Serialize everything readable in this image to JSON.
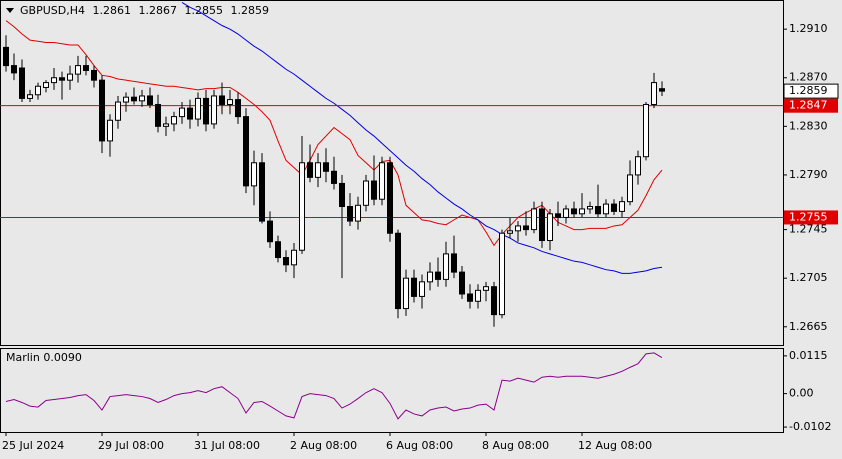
{
  "chart_data": [
    {
      "type": "candlestick",
      "symbol": "GBPUSD,H4",
      "categories": [
        "25 Jul 2024",
        null,
        null,
        null,
        null,
        null,
        null,
        null,
        null,
        null,
        null,
        null,
        "29 Jul 08:00",
        null,
        null,
        null,
        null,
        null,
        null,
        null,
        null,
        null,
        null,
        null,
        "31 Jul 08:00",
        null,
        null,
        null,
        null,
        null,
        null,
        null,
        null,
        null,
        null,
        null,
        "2 Aug 08:00",
        null,
        null,
        null,
        null,
        null,
        null,
        null,
        null,
        null,
        null,
        null,
        "6 Aug 08:00",
        null,
        null,
        null,
        null,
        null,
        null,
        null,
        null,
        null,
        null,
        null,
        "8 Aug 08:00",
        null,
        null,
        null,
        null,
        null,
        null,
        null,
        null,
        null,
        null,
        null,
        "12 Aug 08:00",
        null,
        null,
        null,
        null,
        null,
        null,
        null,
        null,
        null,
        null
      ],
      "open": [
        1.2895,
        1.288,
        1.2878,
        1.2853,
        1.2856,
        1.2862,
        1.2866,
        1.287,
        1.2868,
        1.2873,
        1.288,
        1.2876,
        1.2868,
        1.2818,
        1.2835,
        1.285,
        1.2854,
        1.2851,
        1.2855,
        1.2848,
        1.283,
        1.2832,
        1.2838,
        1.2845,
        1.2836,
        1.2853,
        1.2832,
        1.2855,
        1.2848,
        1.2852,
        1.2838,
        1.2781,
        1.28,
        1.2752,
        1.2735,
        1.2722,
        1.2716,
        1.2728,
        1.28,
        1.2788,
        1.28,
        1.2793,
        1.2783,
        1.2764,
        1.2752,
        1.2765,
        1.2785,
        1.277,
        1.28,
        1.2742,
        1.268,
        1.2705,
        1.269,
        1.2702,
        1.271,
        1.2704,
        1.2725,
        1.271,
        1.2692,
        1.2686,
        1.2695,
        1.2698,
        1.2675,
        1.2742,
        1.2744,
        1.2748,
        1.2745,
        1.2762,
        1.2736,
        1.2758,
        1.2755,
        1.2762,
        1.2758,
        1.2762,
        1.2764,
        1.2758,
        1.2766,
        1.276,
        1.2768,
        1.279,
        1.2805,
        1.2848,
        1.2861
      ],
      "high": [
        1.2905,
        1.289,
        1.2885,
        1.286,
        1.2866,
        1.2868,
        1.2878,
        1.2875,
        1.288,
        1.2888,
        1.2888,
        1.288,
        1.2872,
        1.284,
        1.2855,
        1.2858,
        1.2862,
        1.286,
        1.2862,
        1.2856,
        1.2838,
        1.2842,
        1.285,
        1.2852,
        1.2858,
        1.286,
        1.286,
        1.2866,
        1.286,
        1.2858,
        1.2845,
        1.281,
        1.2808,
        1.276,
        1.274,
        1.2728,
        1.2734,
        1.2822,
        1.2815,
        1.2808,
        1.2812,
        1.2805,
        1.279,
        1.2775,
        1.2772,
        1.279,
        1.2806,
        1.2805,
        1.2805,
        1.2745,
        1.2712,
        1.2712,
        1.2708,
        1.2718,
        1.2722,
        1.2735,
        1.274,
        1.2715,
        1.27,
        1.27,
        1.2702,
        1.2702,
        1.2745,
        1.2755,
        1.2752,
        1.276,
        1.2768,
        1.2768,
        1.2762,
        1.2768,
        1.2765,
        1.2768,
        1.2775,
        1.2768,
        1.2782,
        1.277,
        1.277,
        1.2772,
        1.2802,
        1.281,
        1.285,
        1.2874,
        1.2867
      ],
      "low": [
        1.2875,
        1.2868,
        1.285,
        1.285,
        1.2852,
        1.2858,
        1.286,
        1.2852,
        1.286,
        1.2866,
        1.2872,
        1.2862,
        1.2808,
        1.2805,
        1.2828,
        1.2842,
        1.2848,
        1.2846,
        1.2845,
        1.2825,
        1.2822,
        1.2826,
        1.2832,
        1.2828,
        1.283,
        1.2826,
        1.2828,
        1.284,
        1.284,
        1.2832,
        1.2775,
        1.2765,
        1.275,
        1.273,
        1.2718,
        1.271,
        1.2705,
        1.2725,
        1.2784,
        1.278,
        1.2784,
        1.2778,
        1.2705,
        1.2748,
        1.2745,
        1.276,
        1.2765,
        1.2765,
        1.2735,
        1.2672,
        1.2674,
        1.2685,
        1.268,
        1.2695,
        1.2698,
        1.2698,
        1.2705,
        1.2688,
        1.268,
        1.268,
        1.2686,
        1.2665,
        1.2672,
        1.2738,
        1.2735,
        1.274,
        1.2742,
        1.273,
        1.2728,
        1.2748,
        1.275,
        1.2755,
        1.2755,
        1.2758,
        1.2755,
        1.2755,
        1.2757,
        1.2755,
        1.2765,
        1.2782,
        1.2802,
        1.2845,
        1.2855
      ],
      "close": [
        1.288,
        1.2874,
        1.2853,
        1.2856,
        1.2863,
        1.2866,
        1.287,
        1.2868,
        1.2873,
        1.288,
        1.2876,
        1.2868,
        1.2818,
        1.2835,
        1.285,
        1.2854,
        1.2851,
        1.2855,
        1.2848,
        1.283,
        1.2832,
        1.2838,
        1.2845,
        1.2836,
        1.2853,
        1.2832,
        1.2855,
        1.2848,
        1.2852,
        1.2838,
        1.2781,
        1.28,
        1.2752,
        1.2735,
        1.2722,
        1.2716,
        1.2728,
        1.28,
        1.2788,
        1.28,
        1.2793,
        1.2783,
        1.2764,
        1.2752,
        1.2765,
        1.2785,
        1.277,
        1.28,
        1.2742,
        1.268,
        1.2705,
        1.269,
        1.2702,
        1.271,
        1.2704,
        1.2725,
        1.271,
        1.2692,
        1.2686,
        1.2695,
        1.2698,
        1.2675,
        1.2742,
        1.2744,
        1.2748,
        1.2745,
        1.2762,
        1.2736,
        1.2758,
        1.2755,
        1.2762,
        1.2758,
        1.2762,
        1.2764,
        1.2758,
        1.2766,
        1.276,
        1.2768,
        1.279,
        1.2805,
        1.2848,
        1.2866,
        1.2859
      ],
      "overlays": [
        {
          "color": "#e00000",
          "values": [
            1.2917,
            1.2912,
            1.2906,
            1.2901,
            1.29,
            1.2899,
            1.2899,
            1.2898,
            1.2897,
            1.2897,
            1.2889,
            1.288,
            1.2872,
            1.2871,
            1.2869,
            1.2868,
            1.2867,
            1.2866,
            1.2865,
            1.2864,
            1.2863,
            1.2863,
            1.2862,
            1.2861,
            1.286,
            1.2861,
            1.2861,
            1.2862,
            1.2862,
            1.2858,
            1.2853,
            1.2848,
            1.2842,
            1.2835,
            1.2818,
            1.2802,
            1.2796,
            1.279,
            1.2802,
            1.2815,
            1.2822,
            1.2829,
            1.2824,
            1.2819,
            1.2806,
            1.28,
            1.2794,
            1.2801,
            1.2802,
            1.279,
            1.2765,
            1.2759,
            1.2753,
            1.2752,
            1.275,
            1.2749,
            1.2753,
            1.2757,
            1.2755,
            1.2753,
            1.2743,
            1.2732,
            1.2741,
            1.2748,
            1.2755,
            1.2759,
            1.2762,
            1.2765,
            1.2758,
            1.2751,
            1.2748,
            1.2745,
            1.2745,
            1.2746,
            1.2746,
            1.2746,
            1.2748,
            1.2749,
            1.2755,
            1.2761,
            1.2773,
            1.2786,
            1.2794
          ]
        },
        {
          "color": "#0000e0",
          "values": [
            null,
            null,
            null,
            null,
            null,
            null,
            null,
            null,
            null,
            null,
            null,
            null,
            null,
            null,
            null,
            null,
            null,
            null,
            null,
            null,
            null,
            null,
            1.2932,
            1.2928,
            1.2925,
            1.2921,
            1.2917,
            1.2913,
            1.291,
            1.2906,
            1.2901,
            1.2896,
            1.2892,
            1.2887,
            1.2882,
            1.2877,
            1.2873,
            1.2868,
            1.2863,
            1.2858,
            1.2853,
            1.2849,
            1.2844,
            1.2839,
            1.2833,
            1.2827,
            1.2822,
            1.2816,
            1.281,
            1.2804,
            1.2798,
            1.2793,
            1.2787,
            1.2782,
            1.2776,
            1.2771,
            1.2766,
            1.2762,
            1.2757,
            1.2753,
            1.2748,
            1.2745,
            1.2741,
            1.2738,
            1.2734,
            1.2732,
            1.273,
            1.2727,
            1.2725,
            1.2723,
            1.2721,
            1.2719,
            1.2718,
            1.2716,
            1.2714,
            1.2712,
            1.2711,
            1.2709,
            1.2709,
            1.271,
            1.2711,
            1.2713,
            1.2714
          ]
        }
      ],
      "hlines": [
        {
          "value": 1.2847,
          "color": "#e00000"
        },
        {
          "value": 1.2755,
          "color": "#e00000"
        }
      ],
      "ylim": [
        1.265,
        1.2934
      ],
      "yticks": [
        {
          "value": 1.291,
          "label": "1.2910"
        },
        {
          "value": 1.287,
          "label": "1.2870"
        },
        {
          "value": 1.283,
          "label": "1.2830"
        },
        {
          "value": 1.279,
          "label": "1.2790"
        },
        1.2745,
        1.2705,
        1.2665
      ],
      "up_color": "#ffffff",
      "down_color": "#000000"
    },
    {
      "type": "line",
      "label": "Marlin 0.0090",
      "series": [
        {
          "color": "#8b008b",
          "values": [
            -0.0024,
            -0.0018,
            -0.0027,
            -0.0038,
            -0.0041,
            -0.0021,
            -0.0018,
            -0.0015,
            -0.0012,
            -0.0006,
            -0.0003,
            -0.0021,
            -0.005,
            -0.0009,
            -0.0006,
            -0.0003,
            -0.0006,
            -0.0009,
            -0.0015,
            -0.0027,
            -0.0018,
            -0.0006,
            0.0,
            0.0003,
            0.0009,
            0.0003,
            0.0015,
            0.0021,
            0.0003,
            -0.0015,
            -0.0059,
            -0.0027,
            -0.0024,
            -0.0038,
            -0.0053,
            -0.0068,
            -0.0074,
            -0.0009,
            0.0,
            -0.0003,
            -0.0006,
            -0.0015,
            -0.0044,
            -0.0032,
            -0.0015,
            0.0003,
            0.0015,
            0.0003,
            -0.003,
            -0.0077,
            -0.005,
            -0.0062,
            -0.0068,
            -0.005,
            -0.0044,
            -0.0041,
            -0.0053,
            -0.0047,
            -0.0044,
            -0.0035,
            -0.0032,
            -0.005,
            0.0041,
            0.0038,
            0.0047,
            0.0041,
            0.0035,
            0.005,
            0.0053,
            0.005,
            0.0053,
            0.0053,
            0.0053,
            0.005,
            0.0047,
            0.0053,
            0.0059,
            0.0068,
            0.008,
            0.0091,
            0.0121,
            0.0124,
            0.011
          ]
        }
      ],
      "ylim": [
        -0.0117,
        0.0139
      ],
      "yticks": [
        0.0115,
        {
          "value": 0,
          "label": "0.00"
        },
        -0.0102
      ]
    }
  ]
}
